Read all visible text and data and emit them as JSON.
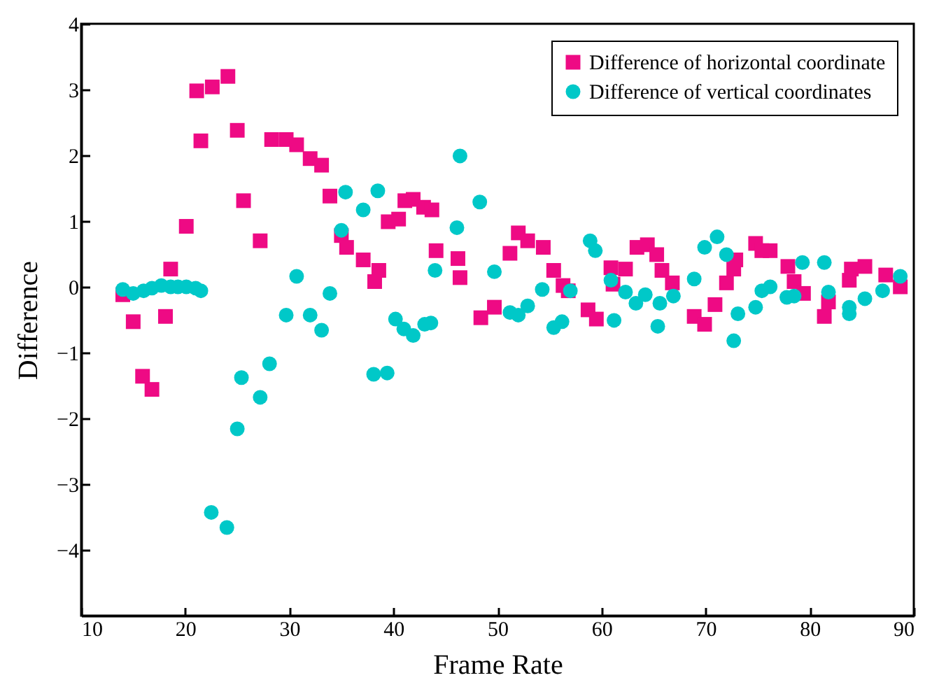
{
  "chart_data": {
    "type": "scatter",
    "xlabel": "Frame Rate",
    "ylabel": "Difference",
    "xlim": [
      10,
      90
    ],
    "xticks": [
      10,
      20,
      30,
      40,
      50,
      60,
      70,
      80,
      90
    ],
    "ylim": [
      -5,
      4
    ],
    "yticks": [
      -4,
      -3,
      -2,
      -1,
      0,
      1,
      2,
      3,
      4
    ],
    "legend": "top right",
    "grid": false,
    "series": [
      {
        "name": "Difference of horizontal coordinate",
        "color": "#ee0a84",
        "marker": "square",
        "x": [
          14.0,
          15.0,
          15.9,
          16.8,
          18.1,
          18.6,
          20.1,
          21.1,
          21.5,
          22.6,
          24.1,
          25.0,
          25.6,
          27.2,
          28.3,
          29.7,
          30.7,
          32.0,
          33.1,
          33.9,
          35.0,
          35.5,
          37.1,
          38.2,
          38.6,
          39.5,
          40.5,
          41.1,
          41.9,
          42.9,
          43.7,
          44.1,
          46.2,
          46.4,
          48.4,
          49.7,
          51.2,
          52.0,
          52.9,
          54.4,
          55.4,
          56.3,
          56.8,
          58.7,
          59.5,
          60.9,
          61.1,
          62.3,
          63.4,
          64.4,
          65.3,
          65.8,
          66.8,
          68.9,
          69.9,
          70.9,
          72.0,
          72.7,
          72.9,
          74.8,
          75.4,
          76.2,
          77.9,
          78.5,
          79.4,
          81.4,
          81.8,
          83.8,
          84.0,
          85.3,
          87.3,
          88.7
        ],
        "values": [
          -0.12,
          -0.53,
          -1.36,
          -1.56,
          -0.45,
          0.27,
          0.92,
          2.98,
          2.22,
          3.04,
          3.2,
          2.38,
          1.31,
          0.7,
          2.24,
          2.24,
          2.16,
          1.95,
          1.85,
          1.38,
          0.78,
          0.6,
          0.41,
          0.08,
          0.25,
          0.99,
          1.03,
          1.31,
          1.33,
          1.21,
          1.17,
          0.55,
          0.43,
          0.14,
          -0.47,
          -0.31,
          0.51,
          0.82,
          0.7,
          0.6,
          0.25,
          0.02,
          -0.06,
          -0.35,
          -0.49,
          0.29,
          0.04,
          0.27,
          0.6,
          0.64,
          0.49,
          0.25,
          0.06,
          -0.45,
          -0.57,
          -0.27,
          0.06,
          0.27,
          0.41,
          0.66,
          0.55,
          0.55,
          0.31,
          0.08,
          -0.1,
          -0.45,
          -0.23,
          0.1,
          0.27,
          0.31,
          0.18,
          0.0
        ]
      },
      {
        "name": "Difference of vertical coordinates",
        "color": "#00c8c8",
        "marker": "circle",
        "x": [
          14.0,
          15.0,
          16.0,
          16.8,
          17.7,
          18.6,
          19.3,
          20.1,
          21.0,
          21.5,
          22.5,
          24.0,
          25.0,
          25.4,
          27.2,
          28.1,
          29.7,
          30.7,
          32.0,
          33.1,
          33.9,
          35.0,
          35.4,
          37.1,
          38.1,
          38.5,
          39.4,
          40.2,
          41.0,
          41.9,
          43.0,
          43.6,
          44.0,
          46.4,
          46.1,
          48.3,
          49.7,
          51.2,
          52.0,
          52.9,
          54.3,
          55.4,
          56.2,
          57.0,
          58.9,
          59.4,
          60.9,
          61.2,
          62.3,
          63.3,
          64.2,
          65.4,
          65.6,
          66.9,
          68.9,
          69.9,
          71.1,
          72.0,
          72.7,
          73.1,
          74.8,
          75.4,
          76.2,
          77.8,
          78.5,
          79.3,
          81.4,
          81.8,
          83.8,
          83.8,
          85.3,
          87.0,
          88.7
        ],
        "values": [
          -0.04,
          -0.1,
          -0.06,
          -0.02,
          0.02,
          0.0,
          0.0,
          0.0,
          -0.02,
          -0.06,
          -3.43,
          -3.66,
          -2.16,
          -1.38,
          -1.68,
          -1.17,
          -0.43,
          0.16,
          -0.43,
          -0.66,
          -0.1,
          0.86,
          1.44,
          1.17,
          -1.33,
          1.46,
          -1.31,
          -0.49,
          -0.64,
          -0.74,
          -0.57,
          -0.55,
          0.25,
          1.99,
          0.9,
          1.29,
          0.23,
          -0.39,
          -0.43,
          -0.29,
          -0.04,
          -0.62,
          -0.53,
          -0.06,
          0.7,
          0.55,
          0.1,
          -0.51,
          -0.08,
          -0.25,
          -0.12,
          -0.6,
          -0.25,
          -0.14,
          0.12,
          0.6,
          0.76,
          0.49,
          -0.82,
          -0.41,
          -0.31,
          -0.06,
          0.0,
          -0.16,
          -0.14,
          0.37,
          0.37,
          -0.08,
          -0.41,
          -0.31,
          -0.18,
          -0.06,
          0.16
        ]
      }
    ]
  }
}
